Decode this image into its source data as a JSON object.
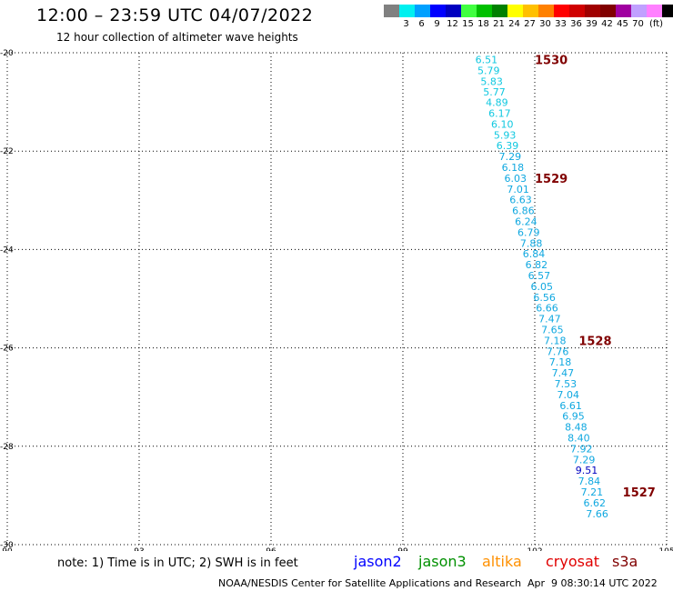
{
  "header": {
    "title": "12:00 – 23:59 UTC 04/07/2022",
    "subtitle": "12 hour collection of altimeter wave heights"
  },
  "legend": {
    "unit": "(ft)",
    "colors": [
      "#808080",
      "#00f0f0",
      "#00a0ff",
      "#0000ff",
      "#0000c0",
      "#40ff40",
      "#00c000",
      "#008000",
      "#ffff00",
      "#ffc000",
      "#ff8000",
      "#ff0000",
      "#d00000",
      "#a00000",
      "#800000",
      "#a000a0",
      "#c0a0ff",
      "#ff80ff",
      "#000000"
    ],
    "labels": [
      "3",
      "6",
      "9",
      "12",
      "15",
      "18",
      "21",
      "24",
      "27",
      "30",
      "33",
      "36",
      "39",
      "42",
      "45",
      "70"
    ]
  },
  "chart_data": {
    "type": "scatter",
    "xlim": [
      90,
      105
    ],
    "ylim": [
      -30,
      -20
    ],
    "xticks": [
      "90",
      "93",
      "96",
      "99",
      "102",
      "105"
    ],
    "yticks": [
      "-20",
      "-22",
      "-24",
      "-26",
      "-28",
      "-30"
    ],
    "grid": true,
    "points": [
      {
        "lon": 100.9,
        "lat": -20.12,
        "v": "6.51",
        "c": "#10c8e0"
      },
      {
        "lon": 100.95,
        "lat": -20.34,
        "v": "5.79",
        "c": "#10c8e0"
      },
      {
        "lon": 101.02,
        "lat": -20.56,
        "v": "5.83",
        "c": "#10c8e0"
      },
      {
        "lon": 101.08,
        "lat": -20.78,
        "v": "5.77",
        "c": "#10c8e0"
      },
      {
        "lon": 101.14,
        "lat": -20.99,
        "v": "4.89",
        "c": "#10c8e0"
      },
      {
        "lon": 101.2,
        "lat": -21.21,
        "v": "6.17",
        "c": "#10c8e0"
      },
      {
        "lon": 101.26,
        "lat": -21.43,
        "v": "6.10",
        "c": "#10c8e0"
      },
      {
        "lon": 101.32,
        "lat": -21.65,
        "v": "5.93",
        "c": "#10c8e0"
      },
      {
        "lon": 101.38,
        "lat": -21.87,
        "v": "6.39",
        "c": "#10c8e0"
      },
      {
        "lon": 101.44,
        "lat": -22.09,
        "v": "7.29",
        "c": "#10a8e0"
      },
      {
        "lon": 101.5,
        "lat": -22.31,
        "v": "6.18",
        "c": "#10a8e0"
      },
      {
        "lon": 101.56,
        "lat": -22.53,
        "v": "6.03",
        "c": "#10a8e0"
      },
      {
        "lon": 101.62,
        "lat": -22.75,
        "v": "7.01",
        "c": "#10a8e0"
      },
      {
        "lon": 101.68,
        "lat": -22.97,
        "v": "6.63",
        "c": "#10a8e0"
      },
      {
        "lon": 101.74,
        "lat": -23.19,
        "v": "6.86",
        "c": "#10a8e0"
      },
      {
        "lon": 101.8,
        "lat": -23.41,
        "v": "6.24",
        "c": "#10a8e0"
      },
      {
        "lon": 101.86,
        "lat": -23.63,
        "v": "6.79",
        "c": "#10a8e0"
      },
      {
        "lon": 101.92,
        "lat": -23.85,
        "v": "7.88",
        "c": "#10a8e0"
      },
      {
        "lon": 101.98,
        "lat": -24.07,
        "v": "6.84",
        "c": "#10a8e0"
      },
      {
        "lon": 102.04,
        "lat": -24.29,
        "v": "6.82",
        "c": "#10a8e0"
      },
      {
        "lon": 102.1,
        "lat": -24.51,
        "v": "6.57",
        "c": "#10a8e0"
      },
      {
        "lon": 102.16,
        "lat": -24.73,
        "v": "6.05",
        "c": "#10a8e0"
      },
      {
        "lon": 102.22,
        "lat": -24.95,
        "v": "6.56",
        "c": "#10a8e0"
      },
      {
        "lon": 102.28,
        "lat": -25.17,
        "v": "6.66",
        "c": "#10a8e0"
      },
      {
        "lon": 102.34,
        "lat": -25.39,
        "v": "7.47",
        "c": "#10a8e0"
      },
      {
        "lon": 102.4,
        "lat": -25.61,
        "v": "7.65",
        "c": "#10a8e0"
      },
      {
        "lon": 102.46,
        "lat": -25.83,
        "v": "7.18",
        "c": "#10a8e0"
      },
      {
        "lon": 102.52,
        "lat": -26.05,
        "v": "7.76",
        "c": "#10a8e0"
      },
      {
        "lon": 102.58,
        "lat": -26.27,
        "v": "7.18",
        "c": "#10a8e0"
      },
      {
        "lon": 102.64,
        "lat": -26.49,
        "v": "7.47",
        "c": "#10a8e0"
      },
      {
        "lon": 102.7,
        "lat": -26.71,
        "v": "7.53",
        "c": "#10a8e0"
      },
      {
        "lon": 102.76,
        "lat": -26.93,
        "v": "7.04",
        "c": "#10a8e0"
      },
      {
        "lon": 102.82,
        "lat": -27.15,
        "v": "6.61",
        "c": "#10a8e0"
      },
      {
        "lon": 102.88,
        "lat": -27.37,
        "v": "6.95",
        "c": "#10a8e0"
      },
      {
        "lon": 102.94,
        "lat": -27.59,
        "v": "8.48",
        "c": "#10a8e0"
      },
      {
        "lon": 103.0,
        "lat": -27.81,
        "v": "8.40",
        "c": "#10a8e0"
      },
      {
        "lon": 103.06,
        "lat": -28.03,
        "v": "7.92",
        "c": "#10a8e0"
      },
      {
        "lon": 103.12,
        "lat": -28.25,
        "v": "7.29",
        "c": "#10a8e0"
      },
      {
        "lon": 103.18,
        "lat": -28.47,
        "v": "9.51",
        "c": "#0000c0"
      },
      {
        "lon": 103.24,
        "lat": -28.69,
        "v": "7.84",
        "c": "#10a8e0"
      },
      {
        "lon": 103.3,
        "lat": -28.91,
        "v": "7.21",
        "c": "#10a8e0"
      },
      {
        "lon": 103.36,
        "lat": -29.13,
        "v": "6.62",
        "c": "#10a8e0"
      },
      {
        "lon": 103.42,
        "lat": -29.35,
        "v": "7.66",
        "c": "#10a8e0"
      }
    ],
    "passes": [
      {
        "lon": 102.0,
        "lat": -20.12,
        "label": "1530"
      },
      {
        "lon": 102.0,
        "lat": -22.53,
        "label": "1529"
      },
      {
        "lon": 103.0,
        "lat": -25.83,
        "label": "1528"
      },
      {
        "lon": 104.0,
        "lat": -28.91,
        "label": "1527"
      }
    ]
  },
  "footer": {
    "note": "note: 1) Time is in UTC; 2) SWH is in feet",
    "satellites": [
      {
        "name": "jason2",
        "color": "#0000ff"
      },
      {
        "name": "jason3",
        "color": "#009000"
      },
      {
        "name": "altika",
        "color": "#ff9000"
      },
      {
        "name": "cryosat",
        "color": "#e00000"
      },
      {
        "name": "s3a",
        "color": "#800000"
      }
    ],
    "credit": "NOAA/NESDIS Center for Satellite Applications and Research",
    "timestamp": "Apr  9 08:30:14 UTC 2022"
  }
}
